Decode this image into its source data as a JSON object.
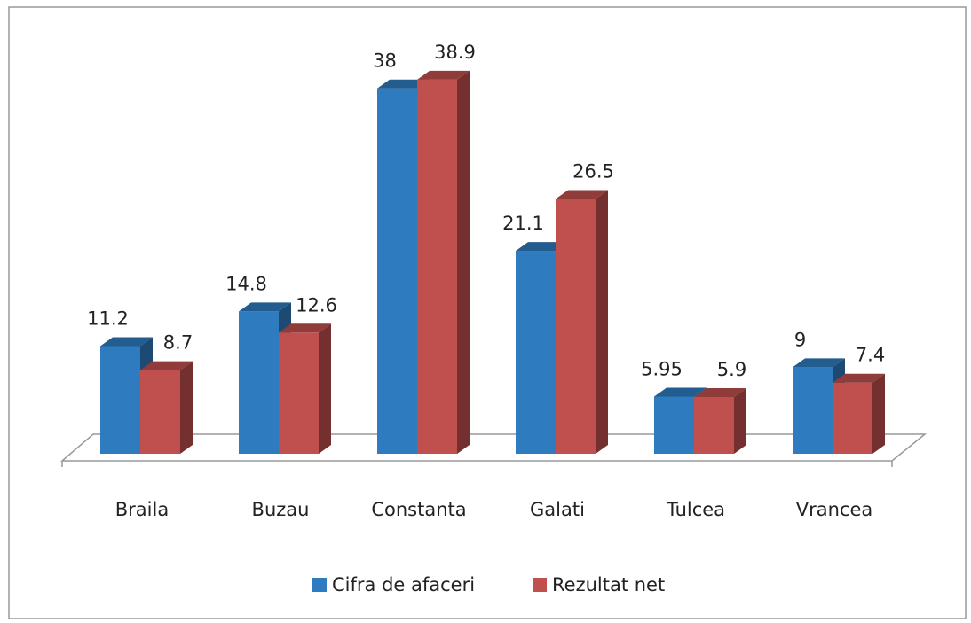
{
  "chart_data": {
    "type": "bar3d",
    "categories": [
      "Braila",
      "Buzau",
      "Constanta",
      "Galati",
      "Tulcea",
      "Vrancea"
    ],
    "series": [
      {
        "name": "Cifra de afaceri",
        "color": "#2e7bbf",
        "values": [
          11.2,
          14.8,
          38,
          21.1,
          5.95,
          9
        ]
      },
      {
        "name": "Rezultat net",
        "color": "#c0504d",
        "values": [
          8.7,
          12.6,
          38.9,
          26.5,
          5.9,
          7.4
        ]
      }
    ],
    "legend": "bottom"
  }
}
